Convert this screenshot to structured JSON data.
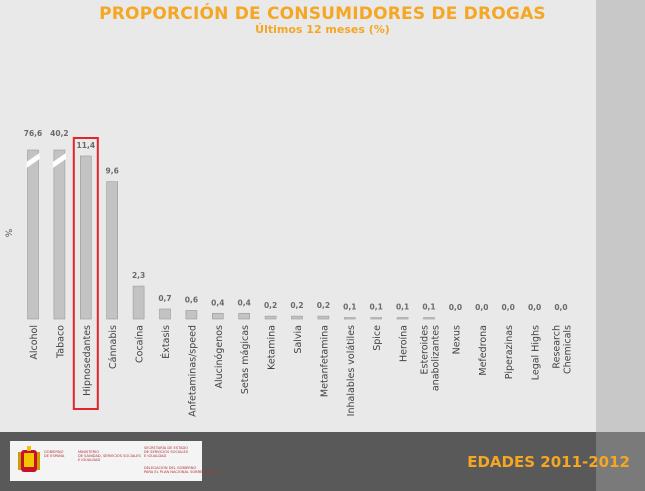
{
  "chart_data": {
    "type": "bar",
    "title": "PROPORCIÓN DE CONSUMIDORES DE DROGAS",
    "subtitle": "Últimos 12 meses (%)",
    "y_unit": "%",
    "categories": [
      "Alcohol",
      "Tabaco",
      "Hipnosedantes",
      "Cánnabis",
      "Cocaína",
      "Éxtasis",
      "Anfetaminas/speed",
      "Alucinógenos",
      "Setas mágicas",
      "Ketamina",
      "Salvia",
      "Metanfetamina",
      "Inhalables volátiles",
      "Spice",
      "Heroína",
      "Esteroides anabolizantes",
      "Nexus",
      "Mefedrona",
      "Piperazinas",
      "Legal Highs",
      "Research Chemicals"
    ],
    "values": [
      76.6,
      40.2,
      11.4,
      9.6,
      2.3,
      0.7,
      0.6,
      0.4,
      0.4,
      0.2,
      0.2,
      0.2,
      0.1,
      0.1,
      0.1,
      0.1,
      0.0,
      0.0,
      0.0,
      0.0,
      0.0
    ],
    "value_labels": [
      "76,6",
      "40,2",
      "11,4",
      "9,6",
      "2,3",
      "0,7",
      "0,6",
      "0,4",
      "0,4",
      "0,2",
      "0,2",
      "0,2",
      "0,1",
      "0,1",
      "0,1",
      "0,1",
      "0,0",
      "0,0",
      "0,0",
      "0,0",
      "0,0"
    ],
    "broken_axis_bars": [
      "Alcohol",
      "Tabaco"
    ],
    "highlighted_category": "Hipnosedantes",
    "highlight_color": "#e0262b",
    "bar_color": "#c3c3c3",
    "bar_stroke": "#9a9a9a",
    "grid": false,
    "legend": "none"
  },
  "footer": {
    "logo_left_text": "GOBIERNO\nDE ESPAÑA",
    "logo_mid_text": "MINISTERIO\nDE SANIDAD, SERVICIOS SOCIALES\nE IGUALDAD",
    "logo_right_top_text": "SECRETARÍA DE ESTADO\nDE SERVICIOS SOCIALES\nE IGUALDAD",
    "logo_right_bottom_text": "DELEGACIÓN DEL GOBIERNO\nPARA EL PLAN NACIONAL SOBRE DROGAS",
    "edades": "EDADES 2011-2012"
  }
}
